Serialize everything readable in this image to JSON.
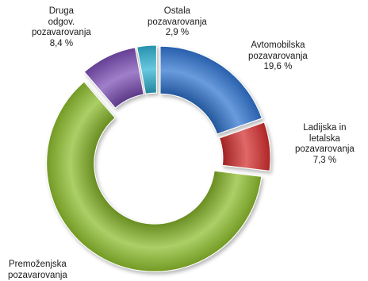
{
  "chart_data": {
    "type": "pie",
    "variant": "exploded-doughnut",
    "title": "",
    "slices": [
      {
        "label_lines": [
          "Avtomobilska",
          "pozavarovanja"
        ],
        "value_label": "19,6 %",
        "value": 19.6,
        "color": "#2f74d0"
      },
      {
        "label_lines": [
          "Ladijska in",
          "letalska",
          "pozavarovanja"
        ],
        "value_label": "7,3 %",
        "value": 7.3,
        "color": "#d42d2d"
      },
      {
        "label_lines": [
          "Premoženjska",
          "pozavarovanja"
        ],
        "value_label": "",
        "value": 61.8,
        "color": "#8cbc2c"
      },
      {
        "label_lines": [
          "Druga",
          "odgov.",
          "pozavarovanja"
        ],
        "value_label": "8,4 %",
        "value": 8.4,
        "color": "#7b4db5"
      },
      {
        "label_lines": [
          "Ostala",
          "pozavarovanja"
        ],
        "value_label": "2,9 %",
        "value": 2.9,
        "color": "#2fb2d2"
      }
    ]
  }
}
